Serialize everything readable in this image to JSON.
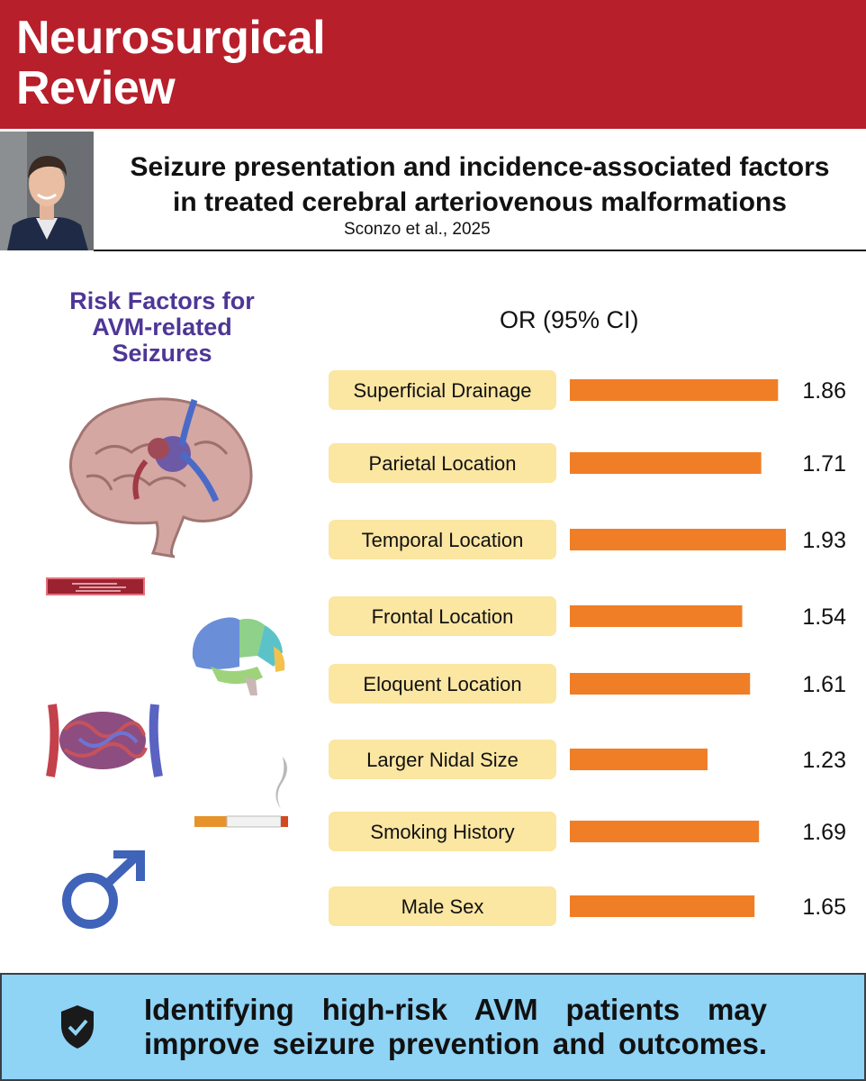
{
  "header": {
    "journal_line1": "Neurosurgical",
    "journal_line2": "Review"
  },
  "article": {
    "title_line1": "Seizure presentation and incidence-associated factors",
    "title_line2": "in treated cerebral arteriovenous malformations",
    "citation": "Sconzo et al., 2025"
  },
  "panel": {
    "risk_line1": "Risk Factors for",
    "risk_line2": "AVM-related",
    "risk_line3": "Seizures",
    "or_header": "OR (95% CI)"
  },
  "icons": [
    "author-photo",
    "brain-avm-icon",
    "vessel-icon",
    "brain-lobes-icon",
    "nidus-icon",
    "cigarette-icon",
    "male-symbol-icon",
    "shield-check-icon"
  ],
  "colors": {
    "brand": "#b71f2b",
    "bar": "#f07e26",
    "label_bg": "#fbe6a2",
    "footer_bg": "#8fd3f5",
    "accent": "#4e3696"
  },
  "chart_data": {
    "type": "bar",
    "orientation": "horizontal",
    "categories": [
      "Superficial Drainage",
      "Parietal Location",
      "Temporal Location",
      "Frontal Location",
      "Eloquent Location",
      "Larger Nidal Size",
      "Smoking History",
      "Male Sex"
    ],
    "values": [
      1.86,
      1.71,
      1.93,
      1.54,
      1.61,
      1.23,
      1.69,
      1.65
    ],
    "value_labels": [
      "1.86",
      "1.71",
      "1.93",
      "1.54",
      "1.61",
      "1.23",
      "1.69",
      "1.65"
    ],
    "xlim": [
      0,
      1.93
    ]
  },
  "footer": {
    "line1": "Identifying high-risk AVM patients may",
    "line2": "improve seizure prevention and outcomes."
  }
}
